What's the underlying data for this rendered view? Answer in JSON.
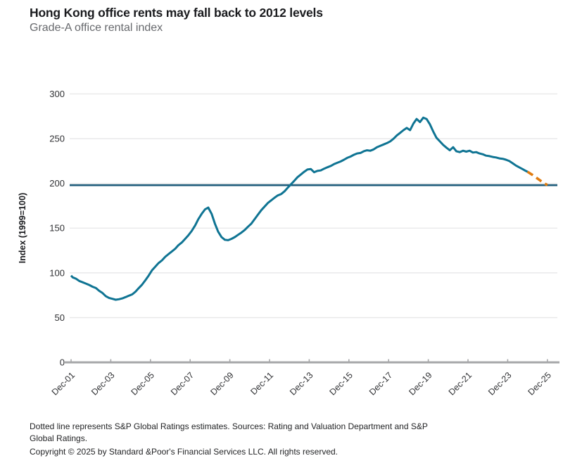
{
  "header": {
    "title": "Hong Kong office rents may fall back to 2012 levels",
    "subtitle": "Grade-A office rental index"
  },
  "chart_data": {
    "type": "line",
    "title": "Hong Kong office rents may fall back to 2012 levels",
    "subtitle": "Grade-A office rental index",
    "ylabel": "Index (1999=100)",
    "xlabel": "",
    "ylim": [
      0,
      300
    ],
    "yticks": [
      0,
      50,
      100,
      150,
      200,
      250,
      300
    ],
    "grid": "horizontal-only",
    "legend_position": "none",
    "xticks": [
      {
        "label": "Dec-01",
        "t": 2001.92
      },
      {
        "label": "Dec-03",
        "t": 2003.92
      },
      {
        "label": "Dec-05",
        "t": 2005.92
      },
      {
        "label": "Dec-07",
        "t": 2007.92
      },
      {
        "label": "Dec-09",
        "t": 2009.92
      },
      {
        "label": "Dec-11",
        "t": 2011.92
      },
      {
        "label": "Dec-13",
        "t": 2013.92
      },
      {
        "label": "Dec-15",
        "t": 2015.92
      },
      {
        "label": "Dec-17",
        "t": 2017.92
      },
      {
        "label": "Dec-19",
        "t": 2019.92
      },
      {
        "label": "Dec-21",
        "t": 2021.92
      },
      {
        "label": "Dec-23",
        "t": 2023.92
      },
      {
        "label": "Dec-25",
        "t": 2025.92
      }
    ],
    "reference_line": {
      "value": 198,
      "color": "#1E5B7A",
      "style": "solid"
    },
    "colors": {
      "actual_line": "#0F7493",
      "estimate_line": "#E07C10",
      "gridline": "#e7e7e8",
      "axis_line": "#a6a7a9"
    },
    "series": [
      {
        "name": "Grade-A office rental index (actual)",
        "style": "solid",
        "color": "#0F7493",
        "points": [
          [
            2001.92,
            97
          ],
          [
            2002.0,
            95
          ],
          [
            2002.17,
            93.5
          ],
          [
            2002.33,
            91
          ],
          [
            2002.5,
            89.5
          ],
          [
            2002.67,
            88
          ],
          [
            2002.83,
            86.5
          ],
          [
            2003.0,
            84.5
          ],
          [
            2003.17,
            83
          ],
          [
            2003.33,
            80
          ],
          [
            2003.5,
            77.5
          ],
          [
            2003.67,
            74
          ],
          [
            2003.83,
            72
          ],
          [
            2004.0,
            71
          ],
          [
            2004.17,
            70
          ],
          [
            2004.33,
            70.5
          ],
          [
            2004.5,
            71.5
          ],
          [
            2004.67,
            73
          ],
          [
            2004.83,
            74.5
          ],
          [
            2005.0,
            76
          ],
          [
            2005.17,
            79
          ],
          [
            2005.33,
            83
          ],
          [
            2005.5,
            87
          ],
          [
            2005.67,
            92
          ],
          [
            2005.83,
            97
          ],
          [
            2006.0,
            103
          ],
          [
            2006.17,
            107
          ],
          [
            2006.33,
            111
          ],
          [
            2006.5,
            114
          ],
          [
            2006.67,
            118
          ],
          [
            2006.83,
            121
          ],
          [
            2007.0,
            124
          ],
          [
            2007.17,
            127
          ],
          [
            2007.33,
            131
          ],
          [
            2007.5,
            134
          ],
          [
            2007.67,
            138
          ],
          [
            2007.83,
            142
          ],
          [
            2008.0,
            147
          ],
          [
            2008.17,
            153
          ],
          [
            2008.33,
            160
          ],
          [
            2008.5,
            166
          ],
          [
            2008.67,
            171
          ],
          [
            2008.83,
            173
          ],
          [
            2009.0,
            166
          ],
          [
            2009.17,
            155
          ],
          [
            2009.33,
            146
          ],
          [
            2009.5,
            140
          ],
          [
            2009.67,
            137
          ],
          [
            2009.83,
            136.5
          ],
          [
            2010.0,
            138
          ],
          [
            2010.17,
            140
          ],
          [
            2010.33,
            142.5
          ],
          [
            2010.5,
            145
          ],
          [
            2010.67,
            148
          ],
          [
            2010.83,
            151.5
          ],
          [
            2011.0,
            155
          ],
          [
            2011.17,
            160
          ],
          [
            2011.33,
            165
          ],
          [
            2011.5,
            170
          ],
          [
            2011.67,
            174
          ],
          [
            2011.83,
            178
          ],
          [
            2012.0,
            181
          ],
          [
            2012.17,
            184
          ],
          [
            2012.33,
            186.5
          ],
          [
            2012.5,
            188
          ],
          [
            2012.67,
            191
          ],
          [
            2012.83,
            195
          ],
          [
            2013.0,
            199
          ],
          [
            2013.17,
            203
          ],
          [
            2013.33,
            207
          ],
          [
            2013.5,
            210
          ],
          [
            2013.67,
            213
          ],
          [
            2013.83,
            215.5
          ],
          [
            2014.0,
            216
          ],
          [
            2014.17,
            212.5
          ],
          [
            2014.33,
            214
          ],
          [
            2014.5,
            214.5
          ],
          [
            2014.67,
            216.5
          ],
          [
            2014.83,
            218
          ],
          [
            2015.0,
            219.5
          ],
          [
            2015.17,
            221.5
          ],
          [
            2015.33,
            223
          ],
          [
            2015.5,
            224.5
          ],
          [
            2015.67,
            226.5
          ],
          [
            2015.83,
            228.5
          ],
          [
            2016.0,
            230
          ],
          [
            2016.17,
            232
          ],
          [
            2016.33,
            233.5
          ],
          [
            2016.5,
            234
          ],
          [
            2016.67,
            236
          ],
          [
            2016.83,
            237
          ],
          [
            2017.0,
            236.5
          ],
          [
            2017.17,
            238
          ],
          [
            2017.33,
            240.5
          ],
          [
            2017.5,
            242
          ],
          [
            2017.67,
            243.5
          ],
          [
            2017.83,
            245
          ],
          [
            2018.0,
            247
          ],
          [
            2018.17,
            250
          ],
          [
            2018.33,
            253.5
          ],
          [
            2018.5,
            256.5
          ],
          [
            2018.67,
            259.5
          ],
          [
            2018.83,
            262
          ],
          [
            2019.0,
            259.5
          ],
          [
            2019.17,
            267
          ],
          [
            2019.33,
            272
          ],
          [
            2019.5,
            268.5
          ],
          [
            2019.67,
            273.5
          ],
          [
            2019.83,
            272
          ],
          [
            2020.0,
            266
          ],
          [
            2020.17,
            258
          ],
          [
            2020.33,
            251
          ],
          [
            2020.5,
            247
          ],
          [
            2020.67,
            243
          ],
          [
            2020.83,
            240
          ],
          [
            2021.0,
            237
          ],
          [
            2021.17,
            240.5
          ],
          [
            2021.33,
            236
          ],
          [
            2021.5,
            235
          ],
          [
            2021.67,
            236.5
          ],
          [
            2021.83,
            235.5
          ],
          [
            2022.0,
            236.5
          ],
          [
            2022.17,
            234.5
          ],
          [
            2022.33,
            235
          ],
          [
            2022.5,
            233.5
          ],
          [
            2022.67,
            232.5
          ],
          [
            2022.83,
            231
          ],
          [
            2023.0,
            230.5
          ],
          [
            2023.17,
            229.5
          ],
          [
            2023.33,
            229
          ],
          [
            2023.5,
            228
          ],
          [
            2023.67,
            227.5
          ],
          [
            2023.83,
            226.5
          ],
          [
            2024.0,
            225
          ],
          [
            2024.17,
            222.5
          ],
          [
            2024.33,
            220
          ],
          [
            2024.5,
            218
          ],
          [
            2024.67,
            216
          ],
          [
            2024.83,
            214
          ],
          [
            2024.92,
            213
          ]
        ]
      },
      {
        "name": "S&P Global Ratings estimates",
        "style": "dashed",
        "color": "#E07C10",
        "points": [
          [
            2024.92,
            213
          ],
          [
            2025.17,
            209.5
          ],
          [
            2025.42,
            205.5
          ],
          [
            2025.67,
            201.5
          ],
          [
            2025.92,
            198
          ]
        ]
      }
    ]
  },
  "footer": {
    "note": "Dotted line represents S&P Global Ratings estimates. Sources: Rating and Valuation Department and S&P Global Ratings.",
    "copyright": "Copyright © 2025 by Standard &Poor's Financial Services LLC. All rights reserved."
  }
}
